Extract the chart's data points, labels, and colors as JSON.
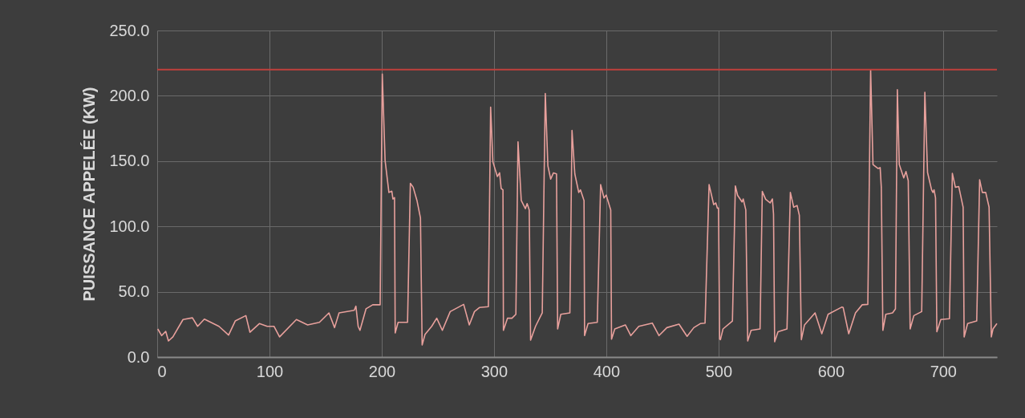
{
  "chart_data": {
    "type": "line",
    "ylabel": "PUISSANCE APPELÉE (KW)",
    "xlim": [
      0,
      748
    ],
    "xticks": [
      0,
      100,
      200,
      300,
      400,
      500,
      600,
      700
    ],
    "ylim": [
      0,
      250
    ],
    "yticks": [
      {
        "value": 0,
        "label": "0.0"
      },
      {
        "value": 50,
        "label": "50.0"
      },
      {
        "value": 100,
        "label": "100.0"
      },
      {
        "value": 150,
        "label": "150.0"
      },
      {
        "value": 200,
        "label": "200.0"
      },
      {
        "value": 250,
        "label": "250.0"
      }
    ],
    "grid": true,
    "line_style": "solid",
    "marker": "none",
    "ref_lines": [
      {
        "axis": "y",
        "value": 220,
        "color": "#c0403c"
      }
    ],
    "series": [
      {
        "color": "#e8a09c",
        "x": [
          0.5,
          4,
          7.6,
          10,
          14,
          23,
          31.4,
          36,
          42,
          55,
          63.6,
          69.5,
          79,
          82.6,
          91,
          98,
          104,
          109,
          124,
          134,
          144.5,
          153,
          158,
          162,
          175.5,
          177,
          179,
          180.6,
          186,
          192,
          198.6,
          200.5,
          203,
          206.4,
          209,
          210,
          211.4,
          212,
          214.6,
          223,
          225.5,
          228,
          231.4,
          234.5,
          236,
          238.6,
          244.5,
          249,
          254,
          261,
          273,
          278,
          282.6,
          287,
          295,
          297,
          299,
          303,
          305,
          306.4,
          308,
          308.4,
          312,
          316,
          319.5,
          321.4,
          324.3,
          328,
          329.5,
          331.4,
          332.6,
          337,
          343,
          345.7,
          348,
          350.5,
          353,
          355.7,
          356.7,
          359.5,
          367.6,
          369.5,
          372,
          375.5,
          377,
          380.2,
          380.7,
          383.8,
          392,
          395,
          398,
          400,
          401,
          404,
          404.7,
          407.6,
          417,
          421.9,
          429,
          441,
          447,
          454,
          464.8,
          472,
          478,
          483.8,
          488,
          491.6,
          495.7,
          497.6,
          499,
          500,
          501,
          501.7,
          504,
          512.4,
          515,
          517,
          521,
          522,
          524.3,
          526,
          529,
          537,
          539,
          542,
          546,
          548,
          549,
          550,
          553,
          561,
          564,
          567,
          570,
          572,
          573.8,
          576.6,
          586,
          592,
          597.6,
          610,
          611,
          616,
          622,
          628,
          633,
          635.5,
          637.6,
          642,
          644,
          645,
          646.4,
          649,
          655,
          657.6,
          659.3,
          661,
          665,
          667,
          669,
          670.7,
          674,
          681,
          683.8,
          686.2,
          689.8,
          691,
          692,
          693.3,
          694.5,
          698,
          705.7,
          708.3,
          711,
          714,
          717.9,
          718.8,
          721.9,
          730,
          732.6,
          735,
          738,
          741,
          743,
          744.5,
          748
        ],
        "values": [
          21.5,
          16.4,
          19.6,
          12.3,
          15.4,
          28.7,
          30,
          23.5,
          29,
          23.5,
          16.8,
          27.6,
          31.7,
          19,
          25.6,
          23.5,
          23.5,
          15.4,
          28.7,
          24.6,
          26.6,
          33.8,
          22.5,
          33.8,
          35.8,
          38.9,
          23.5,
          20.4,
          36.9,
          40,
          40,
          216.6,
          150.5,
          126,
          127,
          121,
          122,
          18.4,
          26.6,
          26.6,
          133,
          130,
          119.8,
          106.5,
          9.2,
          17.4,
          23.5,
          29.7,
          20.4,
          34.8,
          40.3,
          24.6,
          34.8,
          37.9,
          38.5,
          191.3,
          149.5,
          138.2,
          141,
          129,
          128,
          20.4,
          29.7,
          29.7,
          32.7,
          164.8,
          119.8,
          113.6,
          117.5,
          112.6,
          12.9,
          23.5,
          33.8,
          201.7,
          146.4,
          136.2,
          141,
          140.2,
          21.5,
          32.7,
          33.8,
          173.5,
          140.2,
          126,
          128,
          119.8,
          16.4,
          25.6,
          26.6,
          132,
          121.8,
          124,
          121,
          112.6,
          13.7,
          21.5,
          24.6,
          16.4,
          23.5,
          26,
          16.4,
          22.5,
          25.2,
          15.8,
          22.5,
          25.6,
          26,
          132,
          116.7,
          118,
          114,
          114,
          13.7,
          13.3,
          21.5,
          27.6,
          131,
          123.8,
          118.7,
          121,
          112.6,
          12.3,
          20.4,
          21.5,
          126.8,
          120.8,
          118,
          121,
          109.5,
          11.7,
          19.4,
          21.5,
          126,
          114.7,
          116,
          108.5,
          13.3,
          24.6,
          33.8,
          17.8,
          32.7,
          38.3,
          38,
          17.8,
          33.8,
          40,
          40.3,
          219.7,
          147.4,
          144.4,
          145,
          130,
          20.4,
          32.7,
          33.8,
          36.9,
          204.7,
          147.4,
          137.2,
          142,
          135,
          21.5,
          31.7,
          34.8,
          202.7,
          141.3,
          128,
          126,
          128,
          121.8,
          19.4,
          28.7,
          29.3,
          140.6,
          130,
          130.5,
          114.7,
          15.4,
          25.6,
          27.6,
          135.7,
          126,
          126,
          114.7,
          15.4,
          21.5,
          25.6
        ]
      }
    ]
  }
}
